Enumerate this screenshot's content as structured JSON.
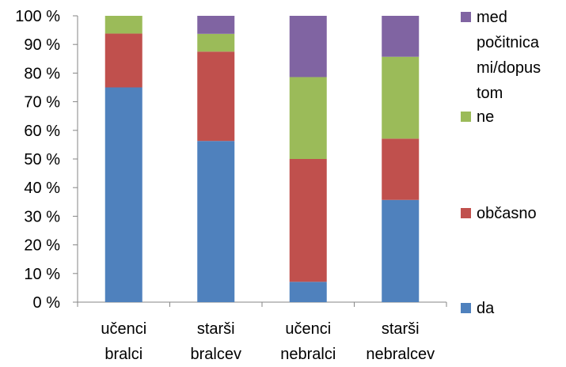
{
  "chart_data": {
    "type": "bar",
    "stacked": true,
    "percent": true,
    "categories": [
      [
        "učenci",
        "bralci"
      ],
      [
        "starši",
        "bralcev"
      ],
      [
        "učenci",
        "nebralci"
      ],
      [
        "starši",
        "nebralcev"
      ]
    ],
    "series": [
      {
        "name": "da",
        "color": "#4f81bd",
        "values": [
          75,
          56.3,
          7.1,
          35.7
        ]
      },
      {
        "name": "občasno",
        "color": "#c0504d",
        "values": [
          18.8,
          31.2,
          42.9,
          21.4
        ]
      },
      {
        "name": "ne",
        "color": "#9bbb59",
        "values": [
          6.2,
          6.2,
          28.6,
          28.6
        ]
      },
      {
        "name": "med počitnica mi/dopustom",
        "label_lines": [
          "med",
          "počitnica",
          "mi/dopus",
          "tom"
        ],
        "color": "#8064a2",
        "values": [
          0,
          6.3,
          21.4,
          14.3
        ]
      }
    ],
    "ylim": [
      0,
      100
    ],
    "ytick_labels": [
      "0 %",
      "10 %",
      "20 %",
      "30 %",
      "40 %",
      "50 %",
      "60 %",
      "70 %",
      "80 %",
      "90 %",
      "100 %"
    ],
    "grid": false,
    "legend": "right"
  }
}
